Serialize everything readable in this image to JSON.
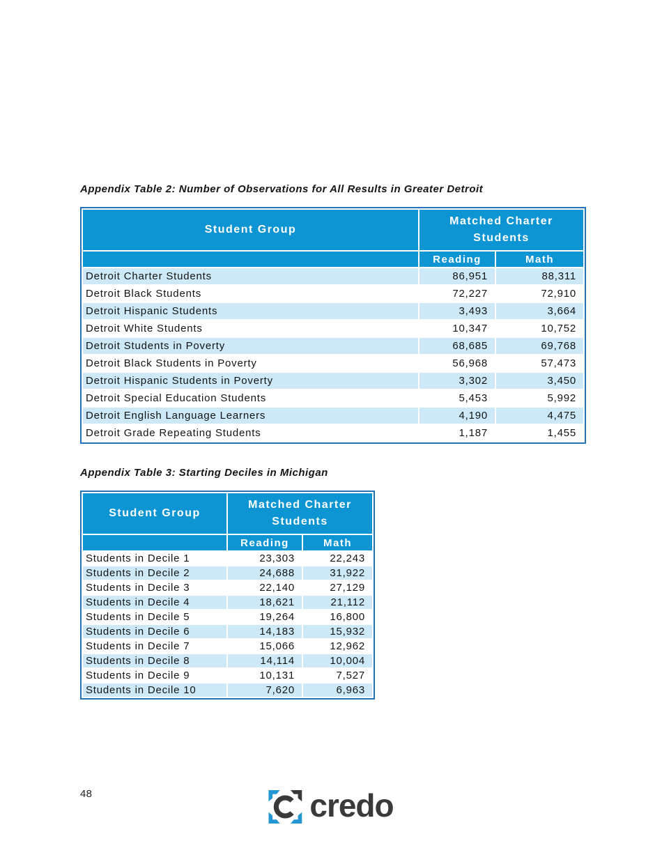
{
  "colors": {
    "header_blue": "#0d95d3",
    "row_blue": "#cde9f8",
    "border_blue": "#2273b8",
    "logo_dark": "#3a3a3c",
    "logo_blue": "#2497d3"
  },
  "tables": [
    {
      "title": "Appendix Table 2: Number of Observations for All Results in Greater Detroit",
      "header": {
        "student_group": "Student Group",
        "group": "Matched Charter Students",
        "sub": [
          "Reading",
          "Math"
        ]
      },
      "rows": [
        [
          "Detroit Charter Students",
          "86,951",
          "88,311"
        ],
        [
          "Detroit Black Students",
          "72,227",
          "72,910"
        ],
        [
          "Detroit Hispanic Students",
          "3,493",
          "3,664"
        ],
        [
          "Detroit White Students",
          "10,347",
          "10,752"
        ],
        [
          "Detroit Students in Poverty",
          "68,685",
          "69,768"
        ],
        [
          "Detroit Black Students in Poverty",
          "56,968",
          "57,473"
        ],
        [
          "Detroit Hispanic Students in Poverty",
          "3,302",
          "3,450"
        ],
        [
          "Detroit Special Education Students",
          "5,453",
          "5,992"
        ],
        [
          "Detroit English Language Learners",
          "4,190",
          "4,475"
        ],
        [
          "Detroit Grade Repeating Students",
          "1,187",
          "1,455"
        ]
      ]
    },
    {
      "title": "Appendix Table 3: Starting Deciles in Michigan",
      "header": {
        "student_group": "Student Group",
        "group": "Matched Charter Students",
        "sub": [
          "Reading",
          "Math"
        ]
      },
      "rows": [
        [
          "Students in Decile 1",
          "23,303",
          "22,243"
        ],
        [
          "Students in Decile 2",
          "24,688",
          "31,922"
        ],
        [
          "Students in Decile 3",
          "22,140",
          "27,129"
        ],
        [
          "Students in Decile 4",
          "18,621",
          "21,112"
        ],
        [
          "Students in Decile 5",
          "19,264",
          "16,800"
        ],
        [
          "Students in Decile 6",
          "14,183",
          "15,932"
        ],
        [
          "Students in Decile 7",
          "15,066",
          "12,962"
        ],
        [
          "Students in Decile 8",
          "14,114",
          "10,004"
        ],
        [
          "Students in Decile 9",
          "10,131",
          "7,527"
        ],
        [
          "Students in Decile 10",
          "7,620",
          "6,963"
        ]
      ]
    }
  ],
  "footer": {
    "page_number": "48",
    "logo_text": "credo"
  }
}
